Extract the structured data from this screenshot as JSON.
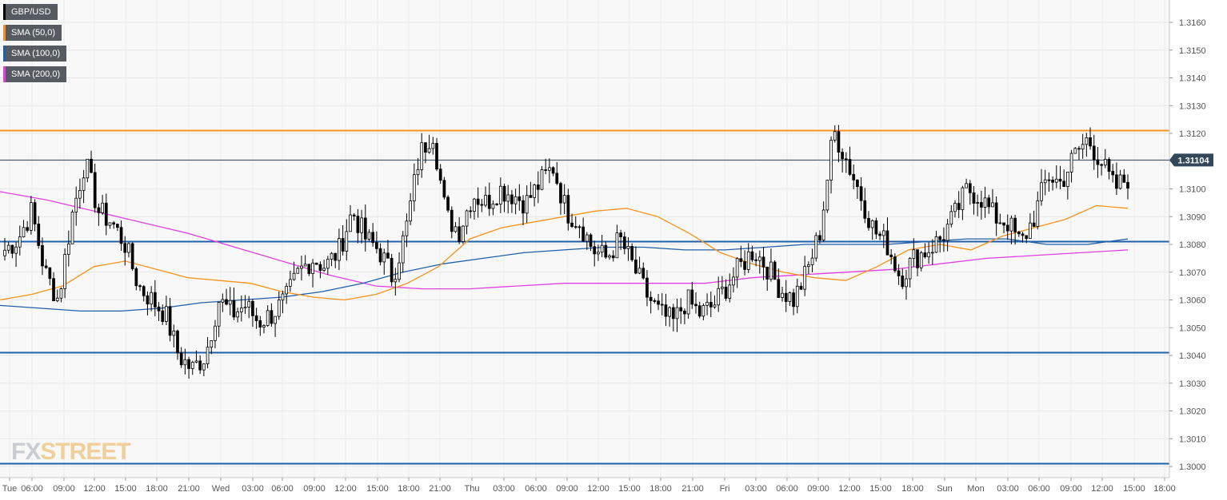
{
  "legend": [
    {
      "label": "GBP/USD",
      "color": "#000000"
    },
    {
      "label": "SMA (50,0)",
      "color": "#f7931a"
    },
    {
      "label": "SMA (100,0)",
      "color": "#1f5fa8"
    },
    {
      "label": "SMA (200,0)",
      "color": "#e040e0"
    }
  ],
  "logo": {
    "part1": "FX",
    "part2": "STREET"
  },
  "chart_data": {
    "type": "candlestick",
    "symbol": "GBP/USD",
    "ylim": [
      1.2995,
      1.3172
    ],
    "y_ticks": [
      "1.3000",
      "1.3010",
      "1.3020",
      "1.3030",
      "1.3040",
      "1.3050",
      "1.3060",
      "1.3070",
      "1.3080",
      "1.3090",
      "1.3100",
      "1.3110",
      "1.3120",
      "1.3130",
      "1.3140",
      "1.3150",
      "1.3160"
    ],
    "x_ticks": [
      "Tue",
      "06:00",
      "09:00",
      "12:00",
      "15:00",
      "18:00",
      "21:00",
      "Wed",
      "03:00",
      "06:00",
      "09:00",
      "12:00",
      "15:00",
      "18:00",
      "21:00",
      "Thu",
      "03:00",
      "06:00",
      "09:00",
      "12:00",
      "15:00",
      "18:00",
      "21:00",
      "Fri",
      "03:00",
      "06:00",
      "09:00",
      "12:00",
      "15:00",
      "18:00",
      "Sun",
      "Mon",
      "03:00",
      "06:00",
      "09:00",
      "12:00",
      "15:00",
      "18:00"
    ],
    "current_price": {
      "value": 1.31104,
      "label": "1.31104"
    },
    "horizontal_levels": [
      {
        "value": 1.3121,
        "color": "#f7931a"
      },
      {
        "value": 1.3081,
        "color": "#1f5fa8"
      },
      {
        "value": 1.3041,
        "color": "#1f5fa8"
      },
      {
        "value": 1.3001,
        "color": "#1f5fa8"
      }
    ],
    "ohlc_keypoints": [
      1.3078,
      1.3082,
      1.3092,
      1.307,
      1.306,
      1.309,
      1.311,
      1.3092,
      1.3088,
      1.308,
      1.3065,
      1.306,
      1.3055,
      1.304,
      1.3035,
      1.304,
      1.306,
      1.3055,
      1.3058,
      1.3052,
      1.3055,
      1.306,
      1.307,
      1.3075,
      1.3072,
      1.3078,
      1.3092,
      1.3082,
      1.3078,
      1.3068,
      1.3085,
      1.3112,
      1.3121,
      1.309,
      1.3085,
      1.3098,
      1.3095,
      1.31,
      1.3098,
      1.3095,
      1.3102,
      1.3108,
      1.3092,
      1.3088,
      1.3078,
      1.3075,
      1.3082,
      1.3072,
      1.3062,
      1.3055,
      1.3052,
      1.306,
      1.3055,
      1.3058,
      1.3065,
      1.3072,
      1.3078,
      1.3072,
      1.3064,
      1.306,
      1.307,
      1.3085,
      1.3121,
      1.311,
      1.3098,
      1.3085,
      1.308,
      1.3068,
      1.3075,
      1.3078,
      1.3082,
      1.309,
      1.31,
      1.3097,
      1.309,
      1.3088,
      1.308,
      1.309,
      1.3105,
      1.3102,
      1.3112,
      1.3118,
      1.311,
      1.31,
      1.3104
    ],
    "sma_50": [
      1.306,
      1.3062,
      1.3065,
      1.3072,
      1.3074,
      1.3071,
      1.3068,
      1.3067,
      1.3066,
      1.3063,
      1.3061,
      1.306,
      1.3062,
      1.3066,
      1.3072,
      1.3082,
      1.3086,
      1.3088,
      1.309,
      1.3092,
      1.3093,
      1.309,
      1.3084,
      1.3077,
      1.3073,
      1.307,
      1.3068,
      1.3067,
      1.3072,
      1.3078,
      1.308,
      1.3078,
      1.3083,
      1.3086,
      1.3089,
      1.3094,
      1.3093
    ],
    "sma_100": [
      1.3058,
      1.3057,
      1.3056,
      1.3056,
      1.3057,
      1.3059,
      1.306,
      1.3061,
      1.3063,
      1.3066,
      1.307,
      1.3073,
      1.3075,
      1.3077,
      1.3078,
      1.3079,
      1.3079,
      1.3078,
      1.3078,
      1.3079,
      1.308,
      1.308,
      1.308,
      1.3081,
      1.3082,
      1.3082,
      1.308,
      1.308,
      1.3082
    ],
    "sma_200": [
      1.3099,
      1.3096,
      1.3092,
      1.3088,
      1.3084,
      1.3079,
      1.3074,
      1.3069,
      1.3065,
      1.3064,
      1.3064,
      1.3065,
      1.3066,
      1.3066,
      1.3066,
      1.3066,
      1.3068,
      1.3069,
      1.307,
      1.3071,
      1.3073,
      1.3075,
      1.3076,
      1.3077,
      1.3078
    ]
  }
}
